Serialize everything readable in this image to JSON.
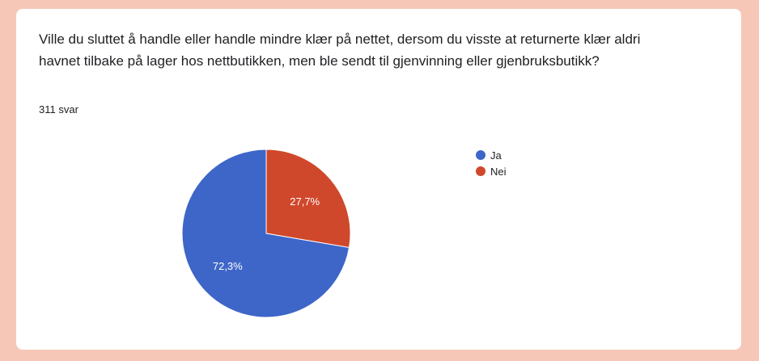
{
  "question": {
    "title": "Ville du sluttet å handle eller handle mindre klær på nettet, dersom du visste at returnerte klær aldri havnet tilbake på lager hos nettbutikken, men ble sendt til gjenvinning eller gjenbruksbutikk?",
    "response_count": "311 svar"
  },
  "chart_data": {
    "type": "pie",
    "categories": [
      "Ja",
      "Nei"
    ],
    "values": [
      72.3,
      27.7
    ],
    "labels": [
      "72,3%",
      "27,7%"
    ],
    "colors": [
      "#3e66c8",
      "#d0482b"
    ],
    "legend_position": "right",
    "start_angle": "top",
    "direction": "clockwise",
    "first_slice": "Nei"
  }
}
